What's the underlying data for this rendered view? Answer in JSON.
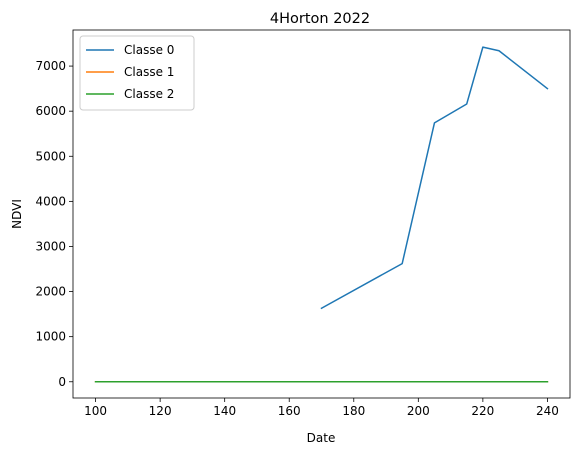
{
  "chart_data": {
    "type": "line",
    "title": "4Horton 2022",
    "xlabel": "Date",
    "ylabel": "NDVI",
    "xlim": [
      93.0,
      247.0
    ],
    "ylim": [
      -360,
      7800
    ],
    "x_ticks": [
      100,
      120,
      140,
      160,
      180,
      200,
      220,
      240
    ],
    "y_ticks": [
      0,
      1000,
      2000,
      3000,
      4000,
      5000,
      6000,
      7000
    ],
    "legend_position": "upper-left",
    "grid": false,
    "series": [
      {
        "name": "Classe 0",
        "color": "#1f77b4",
        "x": [
          170,
          195,
          205,
          215,
          220,
          225,
          240
        ],
        "y": [
          1630,
          2620,
          5740,
          6160,
          7420,
          7340,
          6500
        ]
      },
      {
        "name": "Classe 1",
        "color": "#ff7f0e",
        "x": [
          100,
          240
        ],
        "y": [
          0,
          0
        ]
      },
      {
        "name": "Classe 2",
        "color": "#2ca02c",
        "x": [
          100,
          240
        ],
        "y": [
          0,
          0
        ]
      }
    ]
  }
}
